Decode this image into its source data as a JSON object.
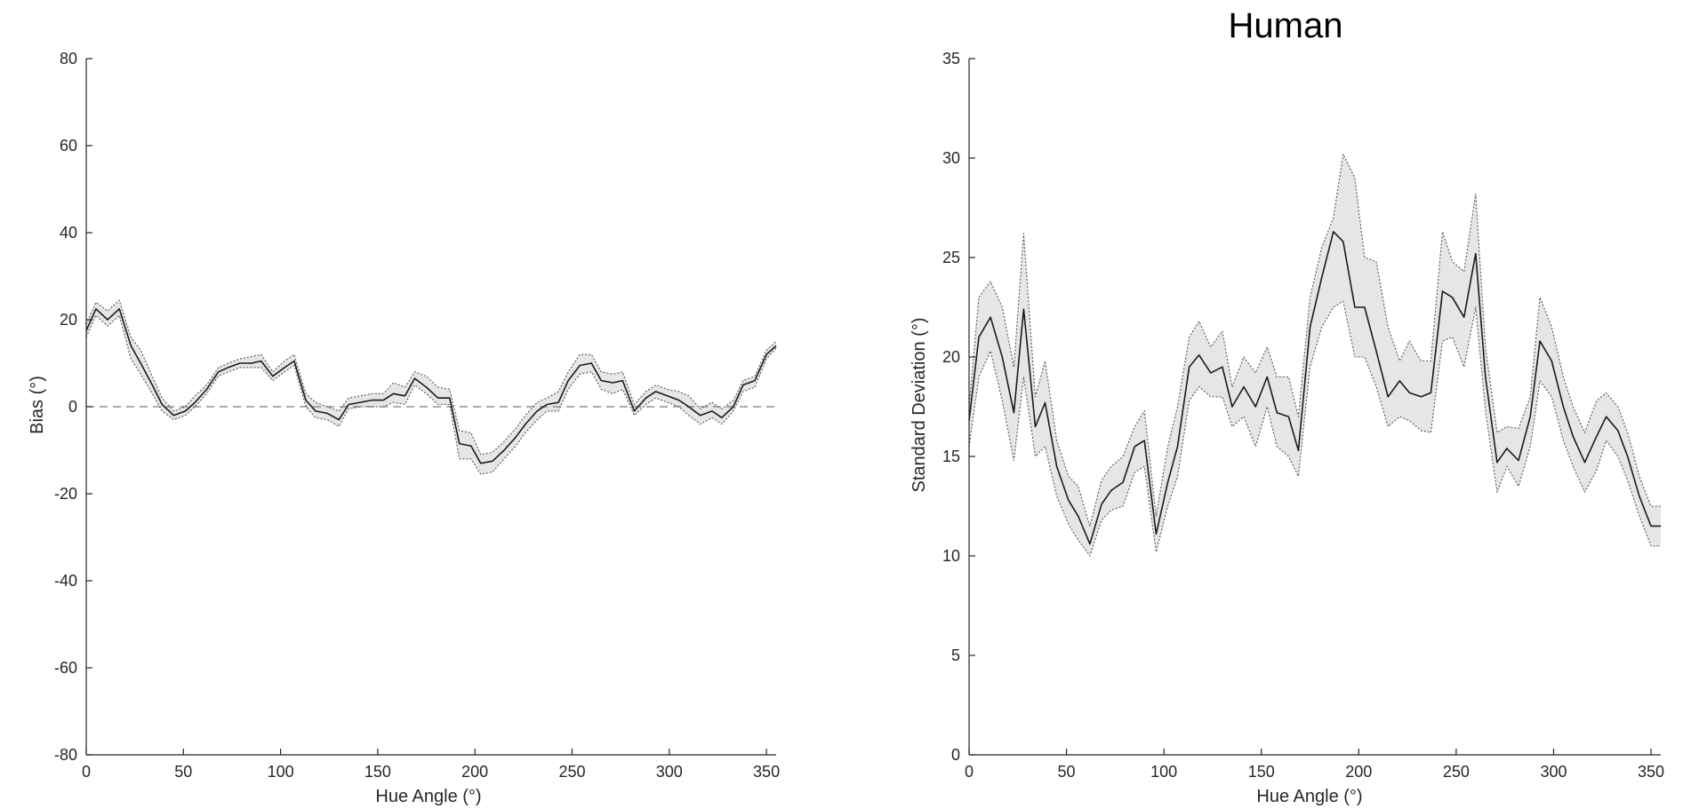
{
  "chart_data": [
    {
      "type": "line",
      "title": "",
      "xlabel": "Hue Angle (°)",
      "ylabel": "Bias (°)",
      "xlim": [
        0,
        355
      ],
      "ylim": [
        -80,
        80
      ],
      "x_ticks": [
        0,
        50,
        100,
        150,
        200,
        250,
        300,
        350
      ],
      "y_ticks": [
        -80,
        -60,
        -40,
        -20,
        0,
        20,
        40,
        60,
        80
      ],
      "x_tick_labels": [
        "0",
        "50",
        "100",
        "150",
        "200",
        "250",
        "300",
        "350"
      ],
      "y_tick_labels": [
        "-80",
        "-60",
        "-40",
        "-20",
        "0",
        "20",
        "40",
        "60",
        "80"
      ],
      "reference_line": 0,
      "x": [
        0,
        5,
        11,
        17,
        23,
        28,
        34,
        39,
        45,
        51,
        56,
        62,
        68,
        73,
        79,
        85,
        90,
        96,
        102,
        107,
        113,
        118,
        124,
        130,
        135,
        141,
        147,
        153,
        158,
        164,
        169,
        175,
        181,
        187,
        192,
        198,
        203,
        209,
        215,
        221,
        226,
        232,
        237,
        243,
        248,
        254,
        260,
        265,
        271,
        276,
        282,
        288,
        293,
        299,
        305,
        310,
        316,
        322,
        327,
        333,
        338,
        344,
        350,
        355
      ],
      "series": [
        {
          "values": [
            17.5,
            22.5,
            20.0,
            22.5,
            14.0,
            10.0,
            5.0,
            0.5,
            -2.0,
            -1.0,
            1.0,
            4.0,
            8.0,
            9.0,
            10.0,
            10.0,
            10.5,
            7.0,
            9.0,
            10.5,
            1.5,
            -1.0,
            -1.5,
            -3.0,
            0.5,
            1.0,
            1.5,
            1.5,
            3.0,
            2.5,
            6.5,
            4.5,
            2.0,
            2.0,
            -8.5,
            -9.0,
            -13.0,
            -12.5,
            -10.0,
            -7.0,
            -4.0,
            -1.0,
            0.5,
            1.0,
            6.0,
            9.5,
            10.0,
            6.0,
            5.5,
            6.0,
            -1.0,
            2.0,
            3.5,
            2.5,
            1.5,
            0.0,
            -2.0,
            -1.0,
            -2.5,
            0.0,
            5.0,
            6.0,
            12.0,
            14.0
          ]
        },
        {
          "values": [
            19.0,
            24.0,
            22.0,
            24.5,
            16.0,
            13.0,
            7.0,
            2.0,
            -1.0,
            0.0,
            2.5,
            5.0,
            9.0,
            10.0,
            11.0,
            11.5,
            12.0,
            8.0,
            10.5,
            12.0,
            3.0,
            1.0,
            0.0,
            -1.0,
            2.0,
            2.5,
            3.0,
            3.0,
            5.5,
            4.5,
            8.0,
            7.0,
            4.5,
            4.0,
            -5.5,
            -6.0,
            -11.0,
            -10.5,
            -8.0,
            -5.0,
            -2.0,
            1.0,
            2.0,
            3.5,
            8.0,
            12.0,
            12.0,
            8.0,
            7.5,
            8.0,
            0.5,
            3.5,
            5.0,
            4.0,
            3.5,
            2.5,
            -0.5,
            1.0,
            -0.5,
            1.5,
            6.0,
            7.0,
            13.0,
            15.0
          ]
        },
        {
          "values": [
            16.0,
            21.0,
            18.5,
            21.0,
            11.0,
            7.5,
            3.0,
            -1.0,
            -3.0,
            -2.0,
            0.0,
            3.0,
            7.0,
            8.0,
            9.0,
            9.0,
            9.0,
            6.0,
            8.0,
            9.5,
            0.0,
            -2.5,
            -3.0,
            -4.5,
            -0.5,
            0.0,
            0.0,
            0.0,
            1.0,
            0.5,
            5.0,
            3.0,
            0.5,
            0.5,
            -12.0,
            -12.0,
            -15.5,
            -15.0,
            -12.0,
            -9.0,
            -6.0,
            -3.0,
            -1.0,
            -1.0,
            4.0,
            7.5,
            8.0,
            4.0,
            3.0,
            4.0,
            -2.0,
            0.5,
            2.0,
            1.0,
            0.0,
            -2.0,
            -4.0,
            -2.5,
            -4.0,
            -1.0,
            3.5,
            4.5,
            11.0,
            13.5
          ]
        }
      ]
    },
    {
      "type": "line",
      "title": "Human",
      "xlabel": "Hue Angle (°)",
      "ylabel": "Standard Deviation (°)",
      "xlim": [
        0,
        355
      ],
      "ylim": [
        0,
        35
      ],
      "x_ticks": [
        0,
        50,
        100,
        150,
        200,
        250,
        300,
        350
      ],
      "y_ticks": [
        0,
        5,
        10,
        15,
        20,
        25,
        30,
        35
      ],
      "x_tick_labels": [
        "0",
        "50",
        "100",
        "150",
        "200",
        "250",
        "300",
        "350"
      ],
      "y_tick_labels": [
        "0",
        "5",
        "10",
        "15",
        "20",
        "25",
        "30",
        "35"
      ],
      "x": [
        0,
        5,
        11,
        17,
        23,
        28,
        34,
        39,
        45,
        51,
        56,
        62,
        68,
        73,
        79,
        85,
        90,
        96,
        102,
        107,
        113,
        118,
        124,
        130,
        135,
        141,
        147,
        153,
        158,
        164,
        169,
        175,
        181,
        187,
        192,
        198,
        203,
        209,
        215,
        221,
        226,
        232,
        237,
        243,
        248,
        254,
        260,
        265,
        271,
        276,
        282,
        288,
        293,
        299,
        305,
        310,
        316,
        322,
        327,
        333,
        338,
        344,
        350,
        355
      ],
      "series": [
        {
          "values": [
            16.8,
            21.0,
            22.0,
            20.0,
            17.2,
            22.4,
            16.5,
            17.7,
            14.5,
            12.8,
            12.0,
            10.6,
            12.6,
            13.3,
            13.7,
            15.5,
            15.8,
            11.1,
            13.7,
            15.5,
            19.5,
            20.1,
            19.2,
            19.5,
            17.5,
            18.5,
            17.5,
            19.0,
            17.2,
            17.0,
            15.3,
            21.5,
            24.0,
            26.3,
            25.8,
            22.5,
            22.5,
            20.3,
            18.0,
            18.8,
            18.2,
            18.0,
            18.2,
            23.3,
            23.0,
            22.0,
            25.2,
            19.0,
            14.7,
            15.4,
            14.8,
            17.0,
            20.8,
            19.8,
            17.5,
            16.0,
            14.7,
            16.0,
            17.0,
            16.3,
            15.0,
            13.0,
            11.5,
            11.5
          ]
        },
        {
          "values": [
            17.5,
            23.0,
            23.8,
            22.5,
            19.5,
            26.2,
            18.0,
            19.8,
            15.8,
            14.0,
            13.5,
            11.5,
            13.8,
            14.5,
            15.0,
            16.5,
            17.3,
            12.0,
            15.5,
            17.5,
            21.0,
            21.8,
            20.5,
            21.3,
            18.5,
            20.0,
            19.2,
            20.5,
            19.0,
            19.0,
            17.0,
            23.0,
            25.5,
            27.0,
            30.2,
            29.0,
            25.0,
            24.8,
            21.5,
            19.8,
            20.8,
            19.8,
            19.8,
            26.3,
            24.8,
            24.3,
            28.2,
            20.5,
            16.2,
            16.5,
            16.4,
            18.0,
            23.0,
            21.5,
            19.0,
            17.5,
            16.2,
            17.8,
            18.2,
            17.5,
            16.2,
            14.0,
            12.5,
            12.5
          ]
        },
        {
          "values": [
            15.5,
            19.0,
            20.3,
            17.8,
            14.8,
            19.0,
            15.0,
            15.5,
            13.0,
            11.6,
            10.8,
            10.0,
            11.8,
            12.3,
            12.5,
            14.2,
            14.5,
            10.2,
            12.5,
            14.0,
            17.8,
            18.5,
            18.0,
            18.0,
            16.5,
            17.0,
            15.5,
            17.5,
            15.5,
            15.0,
            14.0,
            19.5,
            21.5,
            22.5,
            22.8,
            20.0,
            20.0,
            18.5,
            16.5,
            17.0,
            16.8,
            16.3,
            16.2,
            20.8,
            21.0,
            19.5,
            22.5,
            17.3,
            13.2,
            14.5,
            13.5,
            15.5,
            18.8,
            18.0,
            15.8,
            14.5,
            13.2,
            14.3,
            15.8,
            15.0,
            13.8,
            12.0,
            10.5,
            10.5
          ]
        }
      ]
    }
  ]
}
